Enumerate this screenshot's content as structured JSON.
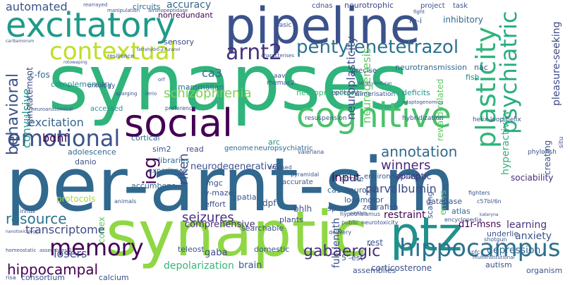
{
  "words": [
    {
      "text": "synapses",
      "color": "#2fb47c"
    },
    {
      "text": "per-arnt-sim",
      "color": "#31688e"
    },
    {
      "text": "synaptic",
      "color": "#8fd744"
    },
    {
      "text": "pipeline",
      "color": "#3b528b"
    },
    {
      "text": "excitatory",
      "color": "#1f9a8a"
    },
    {
      "text": "cognitive",
      "color": "#4ac16d"
    },
    {
      "text": "social",
      "color": "#440154"
    },
    {
      "text": "ptz",
      "color": "#21918c"
    },
    {
      "text": "hippocampus",
      "color": "#2c728e"
    },
    {
      "text": "memory",
      "color": "#440154"
    },
    {
      "text": "contextual",
      "color": "#bddf26"
    },
    {
      "text": "pentylenetetrazol",
      "color": "#2c728e"
    },
    {
      "text": "emotional",
      "color": "#3b528b"
    },
    {
      "text": "arnt2",
      "color": "#46327e"
    },
    {
      "text": "plasticity",
      "color": "#2fb47c"
    },
    {
      "text": "psychiatric",
      "color": "#27ad81"
    },
    {
      "text": "annotation",
      "color": "#31688e"
    },
    {
      "text": "gabaergic",
      "color": "#472d7b"
    },
    {
      "text": "resource",
      "color": "#2c728e"
    },
    {
      "text": "hippocampal",
      "color": "#440154"
    },
    {
      "text": "schizophrenia",
      "color": "#7ad151"
    },
    {
      "text": "behavioral",
      "color": "#3b528b"
    },
    {
      "text": "excitation",
      "color": "#32648e"
    },
    {
      "text": "seizures",
      "color": "#46327e"
    },
    {
      "text": "transcriptome",
      "color": "#3e4a89"
    },
    {
      "text": "winners",
      "color": "#482878"
    },
    {
      "text": "ieg",
      "color": "#440154"
    },
    {
      "text": "automated",
      "color": "#3b528b"
    },
    {
      "text": "accuracy",
      "color": "#31688e"
    },
    {
      "text": "neuroplasticity",
      "color": "#3e4a89"
    },
    {
      "text": "neurogenesis",
      "color": "#5ec962"
    },
    {
      "text": "ca3",
      "color": "#31688e"
    },
    {
      "text": "bdnf",
      "color": "#440154"
    },
    {
      "text": "losers",
      "color": "#3b528b"
    },
    {
      "text": "parvalbumin",
      "color": "#3e4a89"
    },
    {
      "text": "restraint",
      "color": "#440154"
    },
    {
      "text": "learning",
      "color": "#46327e"
    },
    {
      "text": "anxiety",
      "color": "#3b528b"
    },
    {
      "text": "depression",
      "color": "#31688e"
    },
    {
      "text": "d1r-msns",
      "color": "#440154"
    },
    {
      "text": "sociability",
      "color": "#472d7b"
    },
    {
      "text": "input",
      "color": "#440154"
    },
    {
      "text": "epileptic",
      "color": "#46327e"
    },
    {
      "text": "neurodegenerative",
      "color": "#3b528b"
    },
    {
      "text": "convulsive",
      "color": "#1f9a8a"
    },
    {
      "text": "c-fos",
      "color": "#31688e"
    },
    {
      "text": "reinstatement",
      "color": "#3e4a89"
    },
    {
      "text": "complementary",
      "color": "#21918c"
    },
    {
      "text": "inhibitory",
      "color": "#31688e"
    },
    {
      "text": "neurotransmission",
      "color": "#31688e"
    },
    {
      "text": "neurotrophic",
      "color": "#3e4a89"
    },
    {
      "text": "circuits",
      "color": "#31688e"
    },
    {
      "text": "cdnas",
      "color": "#3b528b"
    },
    {
      "text": "nonredundant",
      "color": "#440154"
    },
    {
      "text": "sensory",
      "color": "#3e4a89"
    },
    {
      "text": "mammalian",
      "color": "#2c728e"
    },
    {
      "text": "deficits",
      "color": "#21918c"
    },
    {
      "text": "neuroprotectants",
      "color": "#35b779"
    },
    {
      "text": "fish",
      "color": "#21918c"
    },
    {
      "text": "hyperactivity",
      "color": "#2fb47c"
    },
    {
      "text": "pleasure-seeking",
      "color": "#3e4a89"
    },
    {
      "text": "reward-related",
      "color": "#5ec962"
    },
    {
      "text": "project",
      "color": "#3b528b"
    },
    {
      "text": "task",
      "color": "#3b528b"
    },
    {
      "text": "nac",
      "color": "#3b528b"
    },
    {
      "text": "sim2",
      "color": "#3b528b"
    },
    {
      "text": "danio",
      "color": "#3b528b"
    },
    {
      "text": "cortical",
      "color": "#31688e"
    },
    {
      "text": "adolescence",
      "color": "#31688e"
    },
    {
      "text": "genome",
      "color": "#31688e"
    },
    {
      "text": "neuropsychiatric",
      "color": "#31688e"
    },
    {
      "text": "arc",
      "color": "#21918c"
    },
    {
      "text": "read",
      "color": "#3e4a89"
    },
    {
      "text": "riken",
      "color": "#3e4a89"
    },
    {
      "text": "libraries",
      "color": "#31688e"
    },
    {
      "text": "experience",
      "color": "#31688e"
    },
    {
      "text": "accumbens",
      "color": "#31688e"
    },
    {
      "text": "mgc",
      "color": "#3b528b"
    },
    {
      "text": "y-maze",
      "color": "#3b528b"
    },
    {
      "text": "effort",
      "color": "#3b528b"
    },
    {
      "text": "spatial",
      "color": "#3b528b"
    },
    {
      "text": "protocols",
      "color": "#a0da39"
    },
    {
      "text": "comprehensive",
      "color": "#472d7b"
    },
    {
      "text": "dpf",
      "color": "#3b528b"
    },
    {
      "text": "bhlh",
      "color": "#3b528b"
    },
    {
      "text": "neuro2a",
      "color": "#3b528b"
    },
    {
      "text": "ca1",
      "color": "#31688e"
    },
    {
      "text": "locomotor",
      "color": "#3b528b"
    },
    {
      "text": "spiny",
      "color": "#3b528b"
    },
    {
      "text": "zebrafish",
      "color": "#3b528b"
    },
    {
      "text": "stroke",
      "color": "#31688e"
    },
    {
      "text": "accurate",
      "color": "#3b528b"
    },
    {
      "text": "environmental",
      "color": "#3b528b"
    },
    {
      "text": "database",
      "color": "#3b528b"
    },
    {
      "text": "atlas",
      "color": "#31688e"
    },
    {
      "text": "plants",
      "color": "#3e4a89"
    },
    {
      "text": "searchable",
      "color": "#3b528b"
    },
    {
      "text": "accessed",
      "color": "#21918c"
    },
    {
      "text": "preference",
      "color": "#3b528b"
    },
    {
      "text": "scaling",
      "color": "#3b528b"
    },
    {
      "text": "gaba",
      "color": "#3e4a89"
    },
    {
      "text": "depolarization",
      "color": "#35b779"
    },
    {
      "text": "brain",
      "color": "#3b528b"
    },
    {
      "text": "teleost",
      "color": "#3b528b"
    },
    {
      "text": "domestic",
      "color": "#3b528b"
    },
    {
      "text": "full-length",
      "color": "#3b528b"
    },
    {
      "text": "assemblies",
      "color": "#3b528b"
    },
    {
      "text": "5'-est",
      "color": "#3b528b"
    },
    {
      "text": "corticosterone",
      "color": "#3b528b"
    },
    {
      "text": "autism",
      "color": "#3b528b"
    },
    {
      "text": "organism",
      "color": "#3b528b"
    },
    {
      "text": "consortium",
      "color": "#3b528b"
    },
    {
      "text": "calcium",
      "color": "#3b528b"
    },
    {
      "text": "cortex",
      "color": "#5ec962"
    },
    {
      "text": "rest",
      "color": "#3b528b"
    },
    {
      "text": "errors",
      "color": "#5ec962"
    },
    {
      "text": "underlie",
      "color": "#3b528b"
    },
    {
      "text": "helix-loop-helix",
      "color": "#3b528b"
    },
    {
      "text": "creating",
      "color": "#3b528b"
    },
    {
      "text": "phylofish",
      "color": "#3b528b"
    },
    {
      "text": "situ",
      "color": "#3b528b"
    },
    {
      "text": "hybridization",
      "color": "#3b528b"
    },
    {
      "text": "resuspension",
      "color": "#3b528b"
    },
    {
      "text": "dimerisation",
      "color": "#3b528b"
    },
    {
      "text": "precise",
      "color": "#3b528b"
    },
    {
      "text": "aav",
      "color": "#3b528b"
    },
    {
      "text": "rhemac2",
      "color": "#3b528b"
    },
    {
      "text": "ontology",
      "color": "#3b528b"
    },
    {
      "text": "resilience",
      "color": "#3b528b"
    },
    {
      "text": "manipulation",
      "color": "#3b528b"
    },
    {
      "text": "rearrayed",
      "color": "#3b528b"
    },
    {
      "text": "fight",
      "color": "#3b528b"
    },
    {
      "text": "re-i",
      "color": "#3b528b"
    },
    {
      "text": "basic",
      "color": "#3b528b"
    },
    {
      "text": "epilepsy",
      "color": "#3b528b"
    },
    {
      "text": "fighters",
      "color": "#3b528b"
    },
    {
      "text": "c57bl/6n",
      "color": "#3b528b"
    },
    {
      "text": "encyclopedia",
      "color": "#3b528b"
    },
    {
      "text": "shotgun",
      "color": "#3b528b"
    },
    {
      "text": "pfc",
      "color": "#3b528b"
    },
    {
      "text": "delivery",
      "color": "#3b528b"
    },
    {
      "text": "public",
      "color": "#3b528b"
    },
    {
      "text": "neurotoxicity",
      "color": "#3b528b"
    },
    {
      "text": "hypothalamus",
      "color": "#3b528b"
    },
    {
      "text": "animals",
      "color": "#3b528b"
    },
    {
      "text": "influx",
      "color": "#3b528b"
    },
    {
      "text": "risa",
      "color": "#3b528b"
    },
    {
      "text": "caribamorum",
      "color": "#3b528b"
    },
    {
      "text": "tetrahydrofuran",
      "color": "#3b528b"
    },
    {
      "text": "adaptogenomics",
      "color": "#3b528b"
    },
    {
      "text": "characterises",
      "color": "#3b528b"
    },
    {
      "text": "homeostatic",
      "color": "#3b528b"
    },
    {
      "text": "assemblies-2",
      "color": "#3b528b"
    },
    {
      "text": "nanotoxicology",
      "color": "#3b528b"
    },
    {
      "text": "multiinstitutional",
      "color": "#3b528b"
    },
    {
      "text": "aminopeptidase",
      "color": "#3b528b"
    },
    {
      "text": "valeriana",
      "color": "#3b528b"
    },
    {
      "text": "exposed",
      "color": "#3b528b"
    },
    {
      "text": "pyramidal",
      "color": "#3b528b"
    },
    {
      "text": "tetrahydro-2-furanol",
      "color": "#3b528b"
    },
    {
      "text": "rotowaping",
      "color": "#3b528b"
    },
    {
      "text": "sparging",
      "color": "#3b528b"
    },
    {
      "text": "neuroanatomical",
      "color": "#3b528b"
    },
    {
      "text": "orf",
      "color": "#3b528b"
    },
    {
      "text": "rerio",
      "color": "#3b528b"
    },
    {
      "text": "katerynа",
      "color": "#3b528b"
    },
    {
      "text": "paythos",
      "color": "#3b528b"
    }
  ]
}
